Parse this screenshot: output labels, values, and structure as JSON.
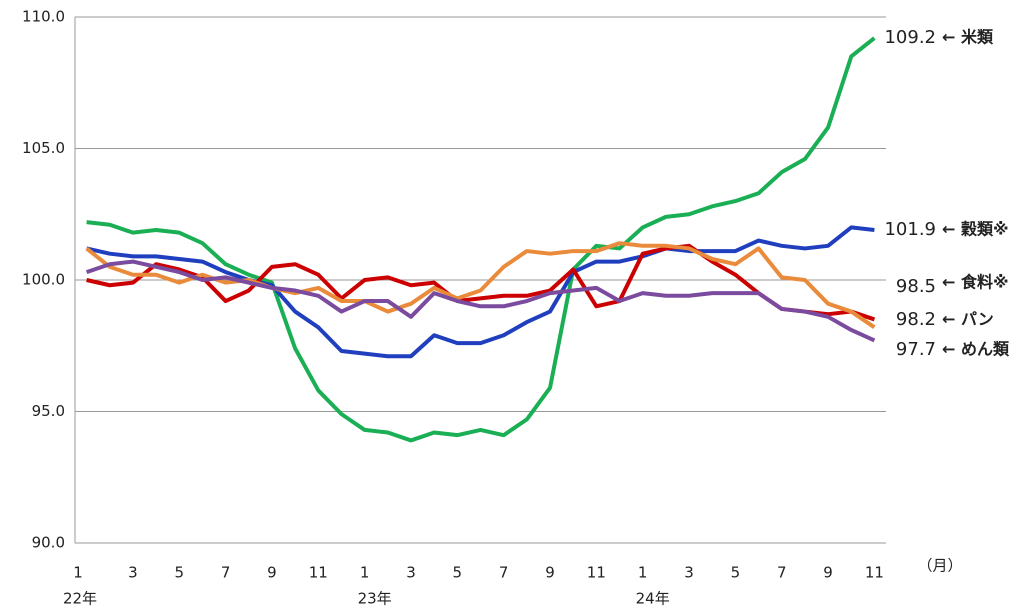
{
  "chart_data": {
    "type": "line",
    "categories": [
      "1",
      null,
      "3",
      null,
      "5",
      null,
      "7",
      null,
      "9",
      null,
      "11",
      null,
      "1",
      null,
      "3",
      null,
      "5",
      null,
      "7",
      null,
      "9",
      null,
      "11",
      null,
      "1",
      null,
      "3",
      null,
      "5",
      null,
      "7",
      null,
      "9",
      null,
      "11"
    ],
    "year_labels": [
      "22年",
      null,
      null,
      null,
      null,
      null,
      null,
      null,
      null,
      null,
      null,
      null,
      "23年",
      null,
      null,
      null,
      null,
      null,
      null,
      null,
      null,
      null,
      null,
      null,
      "24年",
      null,
      null,
      null,
      null,
      null,
      null,
      null,
      null,
      null,
      null
    ],
    "x_unit_label": "（月）",
    "ylim": [
      90,
      110
    ],
    "yticks": [
      {
        "value": 90,
        "label": "90.0"
      },
      {
        "value": 95,
        "label": "95.0"
      },
      {
        "value": 100,
        "label": "100.0"
      },
      {
        "value": 105,
        "label": "105.0"
      },
      {
        "value": 110,
        "label": "110.0"
      }
    ],
    "grid": true,
    "series": [
      {
        "name": "← 米類",
        "color": "#1aaf54",
        "values": [
          102.2,
          102.1,
          101.8,
          101.9,
          101.8,
          101.4,
          100.6,
          100.2,
          99.9,
          97.4,
          95.8,
          94.9,
          94.3,
          94.2,
          93.9,
          94.2,
          94.1,
          94.3,
          94.1,
          94.7,
          95.9,
          100.4,
          101.3,
          101.2,
          102.0,
          102.4,
          102.5,
          102.8,
          103.0,
          103.3,
          104.1,
          104.6,
          105.8,
          108.5,
          109.2
        ]
      },
      {
        "name": "← 穀類※",
        "color": "#1f3fbf",
        "values": [
          101.2,
          101.0,
          100.9,
          100.9,
          100.8,
          100.7,
          100.3,
          100.0,
          99.8,
          98.8,
          98.2,
          97.3,
          97.2,
          97.1,
          97.1,
          97.9,
          97.6,
          97.6,
          97.9,
          98.4,
          98.8,
          100.3,
          100.7,
          100.7,
          100.9,
          101.2,
          101.1,
          101.1,
          101.1,
          101.5,
          101.3,
          101.2,
          101.3,
          102.0,
          101.9
        ]
      },
      {
        "name": "← 食料※",
        "color": "#cc0000",
        "values": [
          100.0,
          99.8,
          99.9,
          100.6,
          100.4,
          100.1,
          99.2,
          99.6,
          100.5,
          100.6,
          100.2,
          99.3,
          100.0,
          100.1,
          99.8,
          99.9,
          99.2,
          99.3,
          99.4,
          99.4,
          99.6,
          100.4,
          99.0,
          99.2,
          101.0,
          101.2,
          101.3,
          100.7,
          100.2,
          99.5,
          98.9,
          98.8,
          98.7,
          98.8,
          98.5
        ]
      },
      {
        "name": "← パン",
        "color": "#e98b3a",
        "values": [
          101.2,
          100.5,
          100.2,
          100.2,
          99.9,
          100.2,
          99.9,
          100.0,
          99.7,
          99.5,
          99.7,
          99.2,
          99.2,
          98.8,
          99.1,
          99.7,
          99.3,
          99.6,
          100.5,
          101.1,
          101.0,
          101.1,
          101.1,
          101.4,
          101.3,
          101.3,
          101.2,
          100.8,
          100.6,
          101.2,
          100.1,
          100.0,
          99.1,
          98.8,
          98.2
        ]
      },
      {
        "name": "← めん類",
        "color": "#7a4b9e",
        "values": [
          100.3,
          100.6,
          100.7,
          100.5,
          100.3,
          100.0,
          100.1,
          99.9,
          99.7,
          99.6,
          99.4,
          98.8,
          99.2,
          99.2,
          98.6,
          99.5,
          99.2,
          99.0,
          99.0,
          99.2,
          99.5,
          99.6,
          99.7,
          99.2,
          99.5,
          99.4,
          99.4,
          99.5,
          99.5,
          99.5,
          98.9,
          98.8,
          98.6,
          98.1,
          97.7
        ]
      }
    ]
  }
}
